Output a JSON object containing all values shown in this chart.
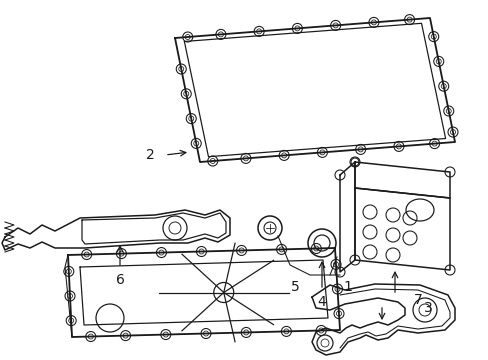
{
  "bg_color": "#ffffff",
  "line_color": "#1a1a1a",
  "lw": 1.1,
  "figsize": [
    4.89,
    3.6
  ],
  "dpi": 100,
  "label_fontsize": 10
}
